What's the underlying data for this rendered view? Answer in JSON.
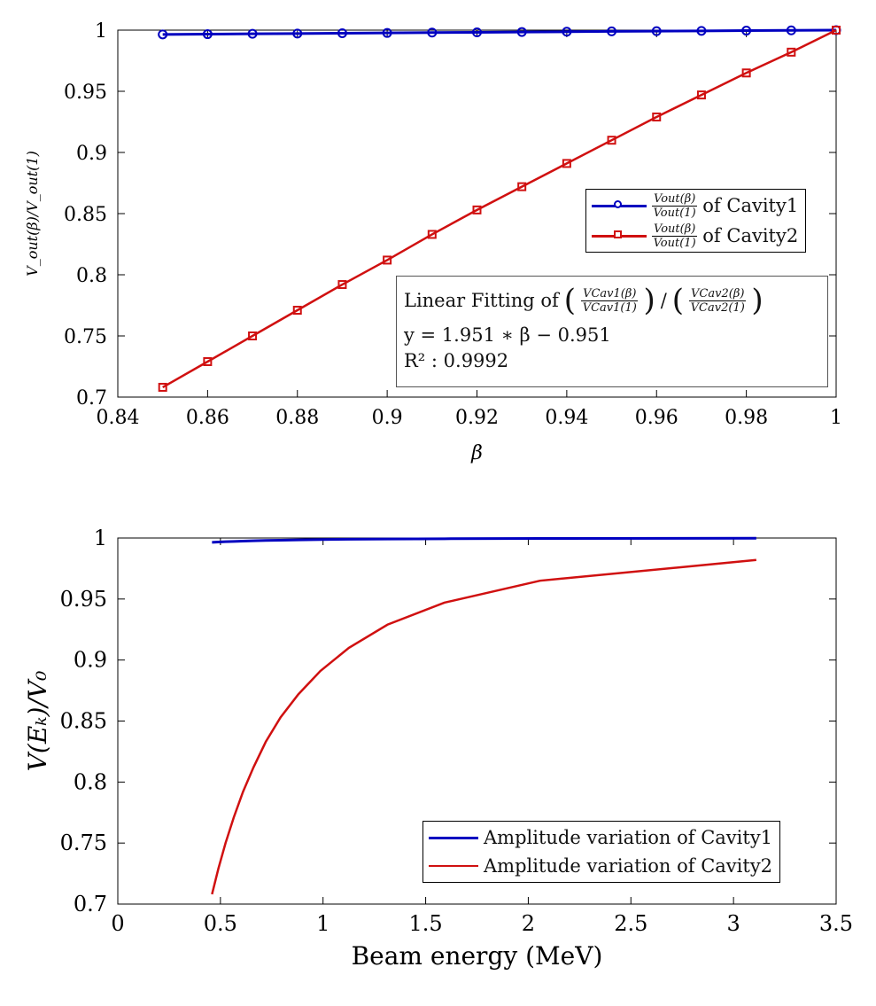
{
  "colors": {
    "cavity1": "#0000c0",
    "cavity2": "#d01010"
  },
  "chart_data": [
    {
      "type": "line",
      "xlabel": "β",
      "ylabel": "V_out(β)/V_out(1)",
      "xlim": [
        0.84,
        1
      ],
      "ylim": [
        0.7,
        1
      ],
      "xticks": [
        "0.84",
        "0.86",
        "0.88",
        "0.9",
        "0.92",
        "0.94",
        "0.96",
        "0.98",
        "1"
      ],
      "yticks": [
        "0.7",
        "0.75",
        "0.8",
        "0.85",
        "0.9",
        "0.95",
        "1"
      ],
      "x": [
        0.85,
        0.86,
        0.87,
        0.88,
        0.89,
        0.9,
        0.91,
        0.92,
        0.93,
        0.94,
        0.95,
        0.96,
        0.97,
        0.98,
        0.99,
        1.0
      ],
      "series": [
        {
          "name": "of Cavity1",
          "frac_num": "Vout(β)",
          "frac_den": "Vout(1)",
          "marker": "circle",
          "values": [
            0.9965,
            0.9967,
            0.997,
            0.9972,
            0.9975,
            0.9977,
            0.998,
            0.9982,
            0.9985,
            0.9987,
            0.999,
            0.9992,
            0.9994,
            0.9996,
            0.9998,
            1.0
          ]
        },
        {
          "name": "of Cavity2",
          "frac_num": "Vout(β)",
          "frac_den": "Vout(1)",
          "marker": "square",
          "values": [
            0.708,
            0.729,
            0.75,
            0.771,
            0.792,
            0.812,
            0.833,
            0.853,
            0.872,
            0.891,
            0.91,
            0.929,
            0.947,
            0.965,
            0.982,
            1.0
          ]
        }
      ],
      "annotation": {
        "line1_prefix": "Linear Fitting of",
        "line1_frac1_num": "VCav1(β)",
        "line1_frac1_den": "VCav1(1)",
        "line1_frac2_num": "VCav2(β)",
        "line1_frac2_den": "VCav2(1)",
        "line2": "y = 1.951 ∗ β − 0.951",
        "line3": "R² : 0.9992"
      },
      "legend_position": "right"
    },
    {
      "type": "line",
      "xlabel": "Beam energy (MeV)",
      "ylabel": "V(Eₖ)/V₀",
      "xlim": [
        0,
        3.5
      ],
      "ylim": [
        0.7,
        1
      ],
      "xticks": [
        "0",
        "0.5",
        "1",
        "1.5",
        "2",
        "2.5",
        "3",
        "3.5"
      ],
      "yticks": [
        "0.7",
        "0.75",
        "0.8",
        "0.85",
        "0.9",
        "0.95",
        "1"
      ],
      "x": [
        0.459,
        0.49,
        0.525,
        0.565,
        0.61,
        0.661,
        0.721,
        0.793,
        0.88,
        0.987,
        1.126,
        1.314,
        1.591,
        2.057,
        3.111
      ],
      "series": [
        {
          "name": "Amplitude variation of Cavity1",
          "values": [
            0.9965,
            0.9967,
            0.997,
            0.9972,
            0.9975,
            0.9977,
            0.998,
            0.9982,
            0.9985,
            0.9987,
            0.999,
            0.9992,
            0.9994,
            0.9996,
            0.9998
          ]
        },
        {
          "name": "Amplitude variation of Cavity2",
          "values": [
            0.708,
            0.729,
            0.75,
            0.771,
            0.792,
            0.812,
            0.833,
            0.853,
            0.872,
            0.891,
            0.91,
            0.929,
            0.947,
            0.965,
            0.982
          ]
        }
      ],
      "legend_position": "bottom-right"
    }
  ]
}
